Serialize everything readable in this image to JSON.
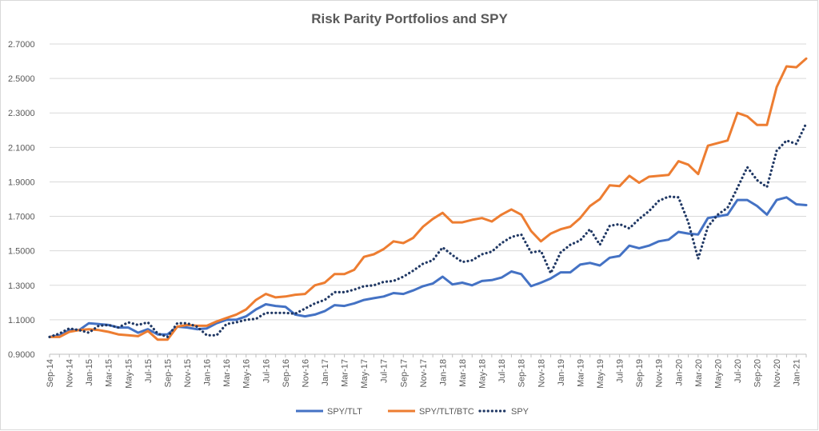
{
  "chart_data": {
    "type": "line",
    "title": "Risk Parity Portfolios and SPY",
    "xlabel": "",
    "ylabel": "",
    "ylim": [
      0.9,
      2.7
    ],
    "yticks": [
      "0.9000",
      "1.1000",
      "1.3000",
      "1.5000",
      "1.7000",
      "1.9000",
      "2.1000",
      "2.3000",
      "2.5000",
      "2.7000"
    ],
    "grid": true,
    "legend_position": "bottom",
    "x": [
      "Sep-14",
      "Oct-14",
      "Nov-14",
      "Dec-14",
      "Jan-15",
      "Feb-15",
      "Mar-15",
      "Apr-15",
      "May-15",
      "Jun-15",
      "Jul-15",
      "Aug-15",
      "Sep-15",
      "Oct-15",
      "Nov-15",
      "Dec-15",
      "Jan-16",
      "Feb-16",
      "Mar-16",
      "Apr-16",
      "May-16",
      "Jun-16",
      "Jul-16",
      "Aug-16",
      "Sep-16",
      "Oct-16",
      "Nov-16",
      "Dec-16",
      "Jan-17",
      "Feb-17",
      "Mar-17",
      "Apr-17",
      "May-17",
      "Jun-17",
      "Jul-17",
      "Aug-17",
      "Sep-17",
      "Oct-17",
      "Nov-17",
      "Dec-17",
      "Jan-18",
      "Feb-18",
      "Mar-18",
      "Apr-18",
      "May-18",
      "Jun-18",
      "Jul-18",
      "Aug-18",
      "Sep-18",
      "Oct-18",
      "Nov-18",
      "Dec-18",
      "Jan-19",
      "Feb-19",
      "Mar-19",
      "Apr-19",
      "May-19",
      "Jun-19",
      "Jul-19",
      "Aug-19",
      "Sep-19",
      "Oct-19",
      "Nov-19",
      "Dec-19",
      "Jan-20",
      "Feb-20",
      "Mar-20",
      "Apr-20",
      "May-20",
      "Jun-20",
      "Jul-20",
      "Aug-20",
      "Sep-20",
      "Oct-20",
      "Nov-20",
      "Dec-20",
      "Jan-21",
      "Feb-21"
    ],
    "x_tick_labels": [
      "Sep-14",
      "Nov-14",
      "Jan-15",
      "Mar-15",
      "May-15",
      "Jul-15",
      "Sep-15",
      "Nov-15",
      "Jan-16",
      "Mar-16",
      "May-16",
      "Jul-16",
      "Sep-16",
      "Nov-16",
      "Jan-17",
      "Mar-17",
      "May-17",
      "Jul-17",
      "Sep-17",
      "Nov-17",
      "Jan-18",
      "Mar-18",
      "May-18",
      "Jul-18",
      "Sep-18",
      "Nov-18",
      "Jan-19",
      "Mar-19",
      "May-19",
      "Jul-19",
      "Sep-19",
      "Nov-19",
      "Jan-20",
      "Mar-20",
      "May-20",
      "Jul-20",
      "Sep-20",
      "Nov-20",
      "Jan-21"
    ],
    "series": [
      {
        "name": "SPY/TLT",
        "color": "#4472c4",
        "style": "solid",
        "values": [
          1.0,
          1.01,
          1.04,
          1.04,
          1.08,
          1.075,
          1.07,
          1.055,
          1.055,
          1.025,
          1.045,
          1.015,
          1.015,
          1.06,
          1.055,
          1.045,
          1.05,
          1.08,
          1.1,
          1.1,
          1.12,
          1.16,
          1.19,
          1.18,
          1.175,
          1.13,
          1.12,
          1.13,
          1.15,
          1.185,
          1.18,
          1.195,
          1.215,
          1.225,
          1.235,
          1.255,
          1.25,
          1.27,
          1.295,
          1.31,
          1.35,
          1.305,
          1.315,
          1.3,
          1.325,
          1.33,
          1.345,
          1.38,
          1.365,
          1.295,
          1.315,
          1.34,
          1.375,
          1.375,
          1.42,
          1.43,
          1.415,
          1.46,
          1.47,
          1.53,
          1.515,
          1.53,
          1.555,
          1.565,
          1.61,
          1.6,
          1.595,
          1.69,
          1.7,
          1.71,
          1.795,
          1.795,
          1.76,
          1.71,
          1.795,
          1.81,
          1.77,
          1.765
        ]
      },
      {
        "name": "SPY/TLT/BTC",
        "color": "#ed7d31",
        "style": "solid",
        "values": [
          1.0,
          1.0,
          1.03,
          1.04,
          1.045,
          1.04,
          1.03,
          1.015,
          1.01,
          1.005,
          1.035,
          0.985,
          0.985,
          1.06,
          1.07,
          1.065,
          1.065,
          1.09,
          1.11,
          1.13,
          1.16,
          1.215,
          1.25,
          1.23,
          1.235,
          1.245,
          1.25,
          1.3,
          1.315,
          1.365,
          1.365,
          1.39,
          1.465,
          1.48,
          1.51,
          1.555,
          1.545,
          1.575,
          1.64,
          1.685,
          1.72,
          1.665,
          1.665,
          1.68,
          1.69,
          1.67,
          1.71,
          1.74,
          1.71,
          1.615,
          1.555,
          1.6,
          1.625,
          1.64,
          1.69,
          1.76,
          1.8,
          1.88,
          1.875,
          1.935,
          1.895,
          1.93,
          1.935,
          1.94,
          2.02,
          2.0,
          1.945,
          2.11,
          2.125,
          2.14,
          2.3,
          2.28,
          2.23,
          2.23,
          2.45,
          2.57,
          2.565,
          2.615
        ]
      },
      {
        "name": "SPY",
        "color": "#203864",
        "style": "dotted",
        "values": [
          1.0,
          1.02,
          1.05,
          1.04,
          1.025,
          1.065,
          1.07,
          1.055,
          1.085,
          1.07,
          1.085,
          1.02,
          1.0,
          1.08,
          1.08,
          1.06,
          1.01,
          1.01,
          1.075,
          1.085,
          1.1,
          1.105,
          1.14,
          1.14,
          1.14,
          1.135,
          1.165,
          1.195,
          1.215,
          1.26,
          1.26,
          1.275,
          1.295,
          1.3,
          1.32,
          1.325,
          1.35,
          1.385,
          1.425,
          1.445,
          1.52,
          1.475,
          1.435,
          1.445,
          1.48,
          1.495,
          1.545,
          1.58,
          1.595,
          1.49,
          1.5,
          1.37,
          1.49,
          1.535,
          1.56,
          1.625,
          1.535,
          1.645,
          1.655,
          1.63,
          1.685,
          1.73,
          1.79,
          1.815,
          1.81,
          1.665,
          1.455,
          1.64,
          1.71,
          1.75,
          1.865,
          1.985,
          1.91,
          1.87,
          2.08,
          2.14,
          2.12,
          2.24
        ]
      }
    ]
  }
}
